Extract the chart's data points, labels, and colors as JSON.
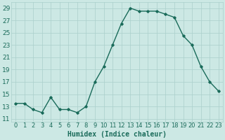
{
  "x": [
    0,
    1,
    2,
    3,
    4,
    5,
    6,
    7,
    8,
    9,
    10,
    11,
    12,
    13,
    14,
    15,
    16,
    17,
    18,
    19,
    20,
    21,
    22,
    23
  ],
  "y": [
    13.5,
    13.5,
    12.5,
    12.0,
    14.5,
    12.5,
    12.5,
    12.0,
    13.0,
    17.0,
    19.5,
    23.0,
    26.5,
    29.0,
    28.5,
    28.5,
    28.5,
    28.0,
    27.5,
    24.5,
    23.0,
    19.5,
    17.0,
    15.5
  ],
  "line_color": "#1a6b5a",
  "marker": "D",
  "marker_size": 1.8,
  "linewidth": 1.0,
  "xlabel": "Humidex (Indice chaleur)",
  "xlim": [
    -0.5,
    23.5
  ],
  "ylim": [
    10.5,
    30.0
  ],
  "yticks": [
    11,
    13,
    15,
    17,
    19,
    21,
    23,
    25,
    27,
    29
  ],
  "xtick_labels": [
    "0",
    "1",
    "2",
    "3",
    "4",
    "5",
    "6",
    "7",
    "8",
    "9",
    "10",
    "11",
    "12",
    "13",
    "14",
    "15",
    "16",
    "17",
    "18",
    "19",
    "20",
    "21",
    "22",
    "23"
  ],
  "bg_color": "#cce8e4",
  "grid_color": "#aacfcb",
  "tick_color": "#1a6b5a",
  "label_color": "#1a6b5a",
  "font_size": 6.5
}
